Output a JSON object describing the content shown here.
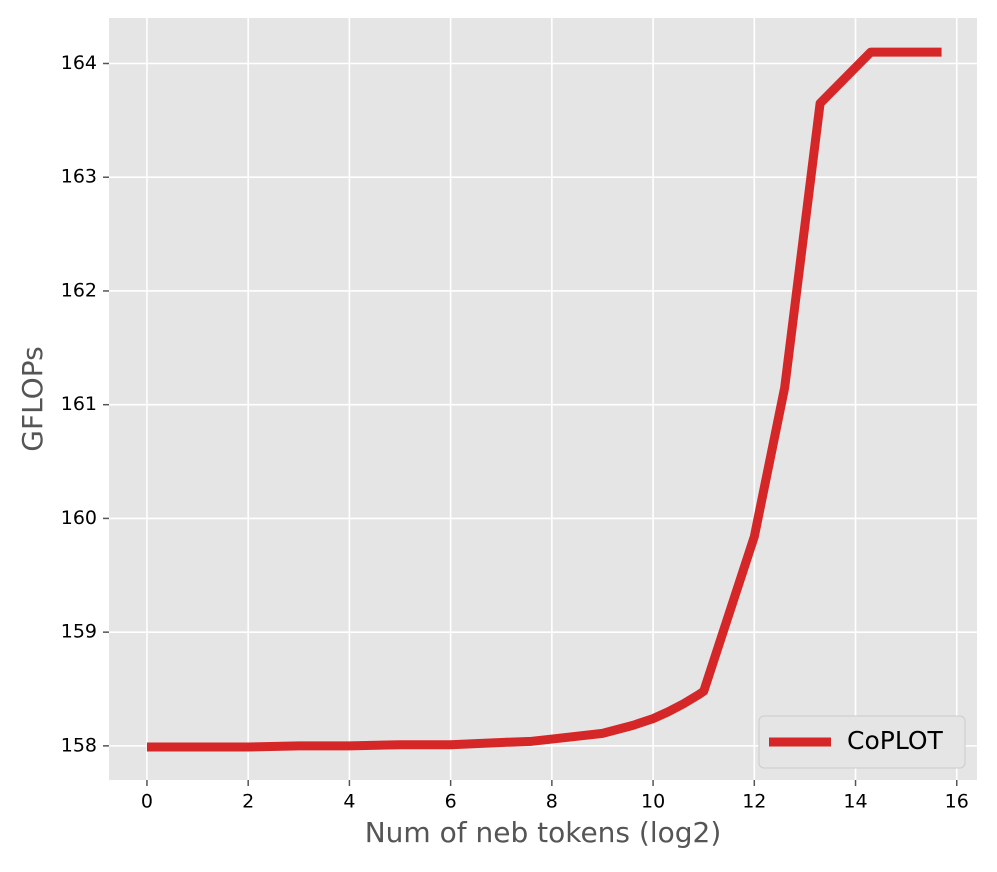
{
  "chart_data": {
    "type": "line",
    "x_label": "Num of neb tokens (log2)",
    "y_label": "GFLOPs",
    "x": [
      0,
      1,
      2,
      3,
      4,
      5,
      6,
      7,
      7.6,
      8,
      9,
      9.6,
      10,
      10.3,
      10.6,
      10.9,
      11,
      12,
      12.6,
      13.3,
      14.3,
      15.7
    ],
    "series": [
      {
        "name": "CoPLOT",
        "color": "#d62728",
        "values": [
          157.99,
          157.99,
          157.99,
          158.0,
          158.0,
          158.01,
          158.01,
          158.03,
          158.04,
          158.06,
          158.11,
          158.18,
          158.24,
          158.3,
          158.37,
          158.45,
          158.48,
          159.84,
          161.15,
          163.65,
          164.1,
          164.1
        ]
      }
    ],
    "xlim": [
      -0.75,
      16.4
    ],
    "ylim": [
      157.7,
      164.4
    ],
    "xticks": [
      0,
      2,
      4,
      6,
      8,
      10,
      12,
      14,
      16
    ],
    "yticks": [
      158,
      159,
      160,
      161,
      162,
      163,
      164
    ],
    "grid": true,
    "legend": "lower right"
  }
}
